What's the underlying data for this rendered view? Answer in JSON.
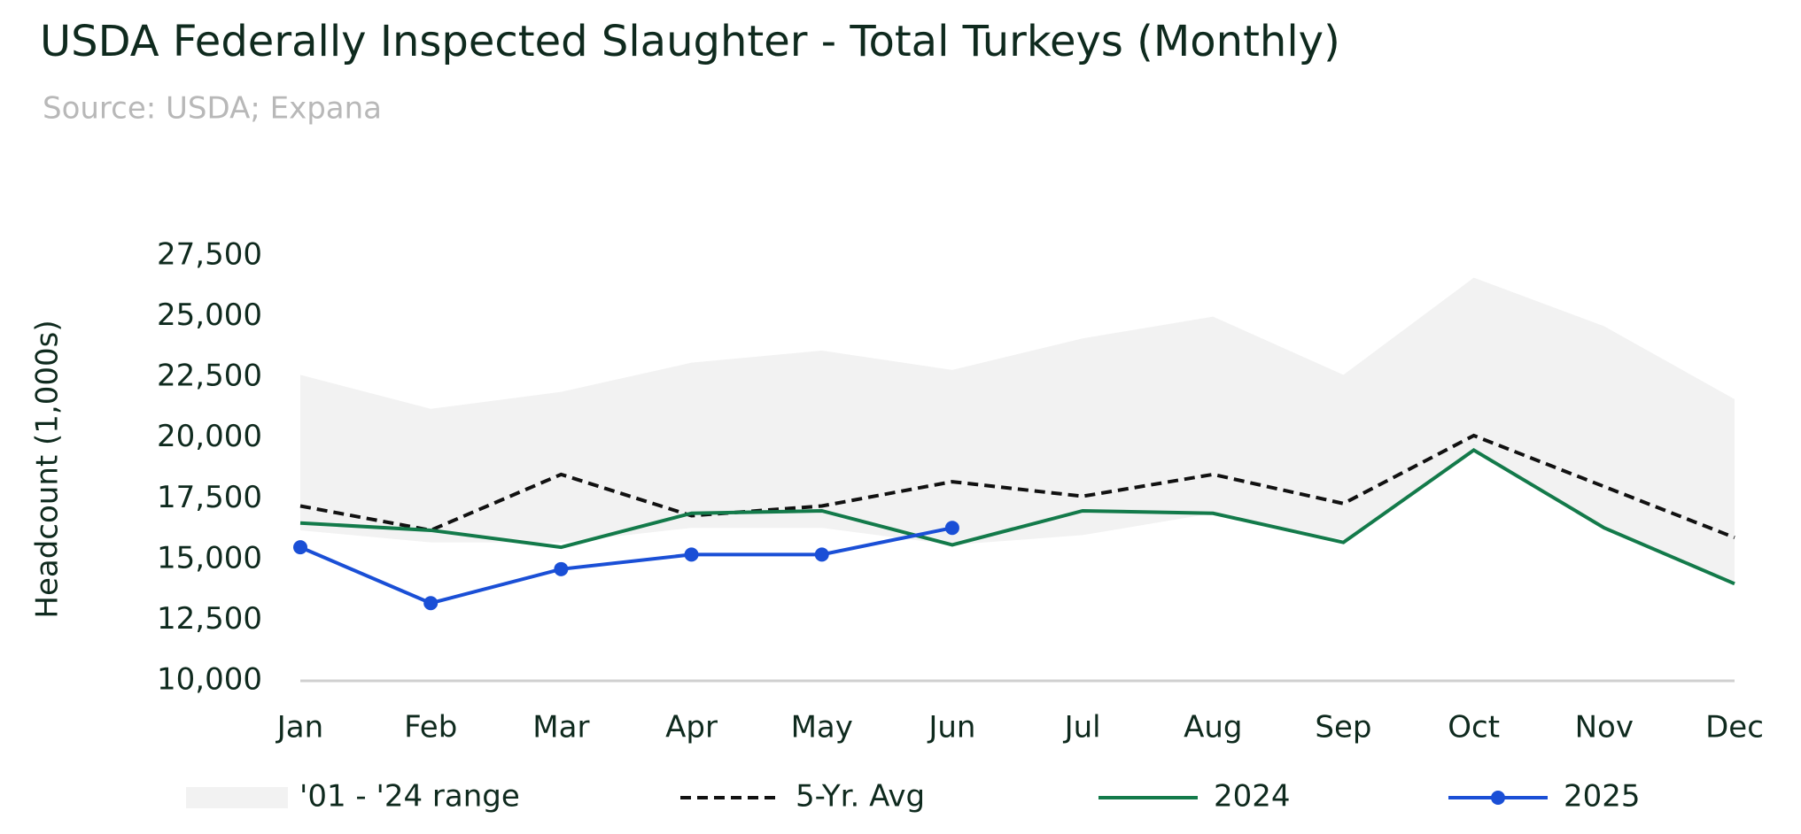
{
  "chart_data": {
    "type": "line",
    "title": "USDA Federally Inspected Slaughter - Total Turkeys (Monthly)",
    "subtitle": "Source: USDA; Expana",
    "y_label": "Headcount (1,000s)",
    "categories": [
      "Jan",
      "Feb",
      "Mar",
      "Apr",
      "May",
      "Jun",
      "Jul",
      "Aug",
      "Sep",
      "Oct",
      "Nov",
      "Dec"
    ],
    "ylim": [
      10000,
      27500
    ],
    "yticks": [
      {
        "value": 10000,
        "label": "10,000"
      },
      {
        "value": 12500,
        "label": "12,500"
      },
      {
        "value": 15000,
        "label": "15,000"
      },
      {
        "value": 17500,
        "label": "17,500"
      },
      {
        "value": 20000,
        "label": "20,000"
      },
      {
        "value": 22500,
        "label": "22,500"
      },
      {
        "value": 25000,
        "label": "25,000"
      },
      {
        "value": 27500,
        "label": "27,500"
      }
    ],
    "band": {
      "name": "'01 - '24 range",
      "color": "#f2f2f2",
      "high": [
        22600,
        21200,
        21900,
        23100,
        23600,
        22800,
        24100,
        25000,
        22600,
        26600,
        24600,
        21600
      ],
      "low": [
        16200,
        15700,
        15700,
        16300,
        16300,
        15600,
        16000,
        16900,
        15800,
        19500,
        16300,
        14000
      ]
    },
    "series": [
      {
        "name": "5-Yr. Avg",
        "color": "#111111",
        "dashed": true,
        "values": [
          17200,
          16200,
          18500,
          16800,
          17200,
          18200,
          17600,
          18500,
          17300,
          20100,
          18000,
          15900
        ]
      },
      {
        "name": "2024",
        "color": "#137a4a",
        "values": [
          16500,
          16200,
          15500,
          16900,
          17000,
          15600,
          17000,
          16900,
          15700,
          19500,
          16300,
          14000
        ]
      },
      {
        "name": "2025",
        "color": "#1a4fd6",
        "marker": true,
        "values": [
          15500,
          13200,
          14600,
          15200,
          15200,
          16300,
          null,
          null,
          null,
          null,
          null,
          null
        ]
      }
    ]
  }
}
